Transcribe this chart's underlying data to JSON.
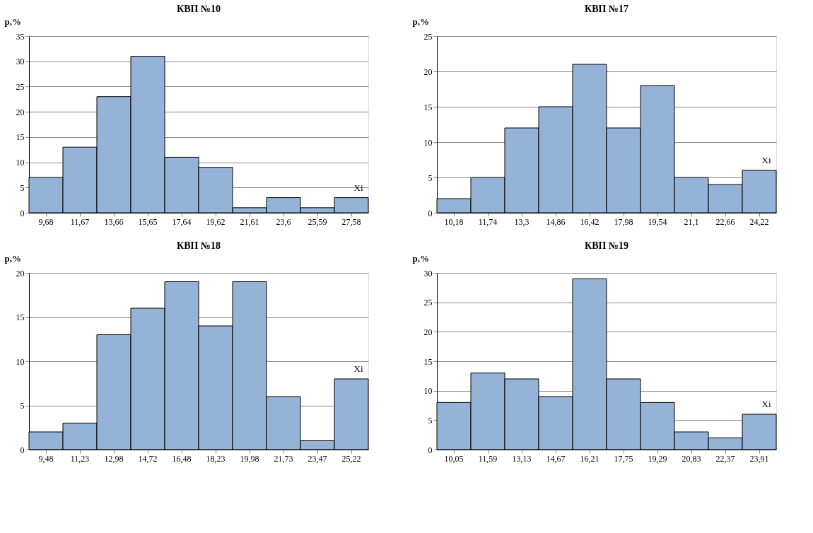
{
  "chart_data": [
    {
      "type": "bar",
      "title": "КВП №10",
      "ylabel": "p,%",
      "categories": [
        "9,68",
        "11,67",
        "13,66",
        "15,65",
        "17,64",
        "19,62",
        "21,61",
        "23,6",
        "25,59",
        "27,58"
      ],
      "values": [
        7,
        13,
        23,
        31,
        11,
        9,
        1,
        3,
        1,
        3
      ],
      "color": "#95b3d7",
      "ylim": [
        0,
        35
      ],
      "yticks": [
        0,
        5,
        10,
        15,
        20,
        25,
        30,
        35
      ],
      "grid": "y",
      "annotations": [
        "Xi"
      ]
    },
    {
      "type": "bar",
      "title": "КВП №17",
      "ylabel": "p,%",
      "categories": [
        "10,18",
        "11,74",
        "13,3",
        "14,86",
        "16,42",
        "17,98",
        "19,54",
        "21,1",
        "22,66",
        "24,22"
      ],
      "values": [
        2,
        5,
        12,
        15,
        21,
        12,
        18,
        5,
        4,
        6
      ],
      "color": "#95b3d7",
      "ylim": [
        0,
        25
      ],
      "yticks": [
        0,
        5,
        10,
        15,
        20,
        25
      ],
      "grid": "y",
      "annotations": [
        "Xi"
      ]
    },
    {
      "type": "bar",
      "title": "КВП №18",
      "ylabel": "p,%",
      "categories": [
        "9,48",
        "11,23",
        "12,98",
        "14,72",
        "16,48",
        "18,23",
        "19,98",
        "21,73",
        "23,47",
        "25,22"
      ],
      "values": [
        2,
        3,
        13,
        16,
        19,
        14,
        19,
        6,
        1,
        8
      ],
      "color": "#95b3d7",
      "ylim": [
        0,
        20
      ],
      "yticks": [
        0,
        5,
        10,
        15,
        20
      ],
      "grid": "y",
      "annotations": [
        "Xi"
      ]
    },
    {
      "type": "bar",
      "title": "КВП №19",
      "ylabel": "p,%",
      "categories": [
        "10,05",
        "11,59",
        "13,13",
        "14,67",
        "16,21",
        "17,75",
        "19,29",
        "20,83",
        "22,37",
        "23,91"
      ],
      "values": [
        8,
        13,
        12,
        9,
        29,
        12,
        8,
        3,
        2,
        6
      ],
      "color": "#95b3d7",
      "ylim": [
        0,
        30
      ],
      "yticks": [
        0,
        5,
        10,
        15,
        20,
        25,
        30
      ],
      "grid": "y",
      "annotations": [
        "Xi"
      ]
    }
  ]
}
